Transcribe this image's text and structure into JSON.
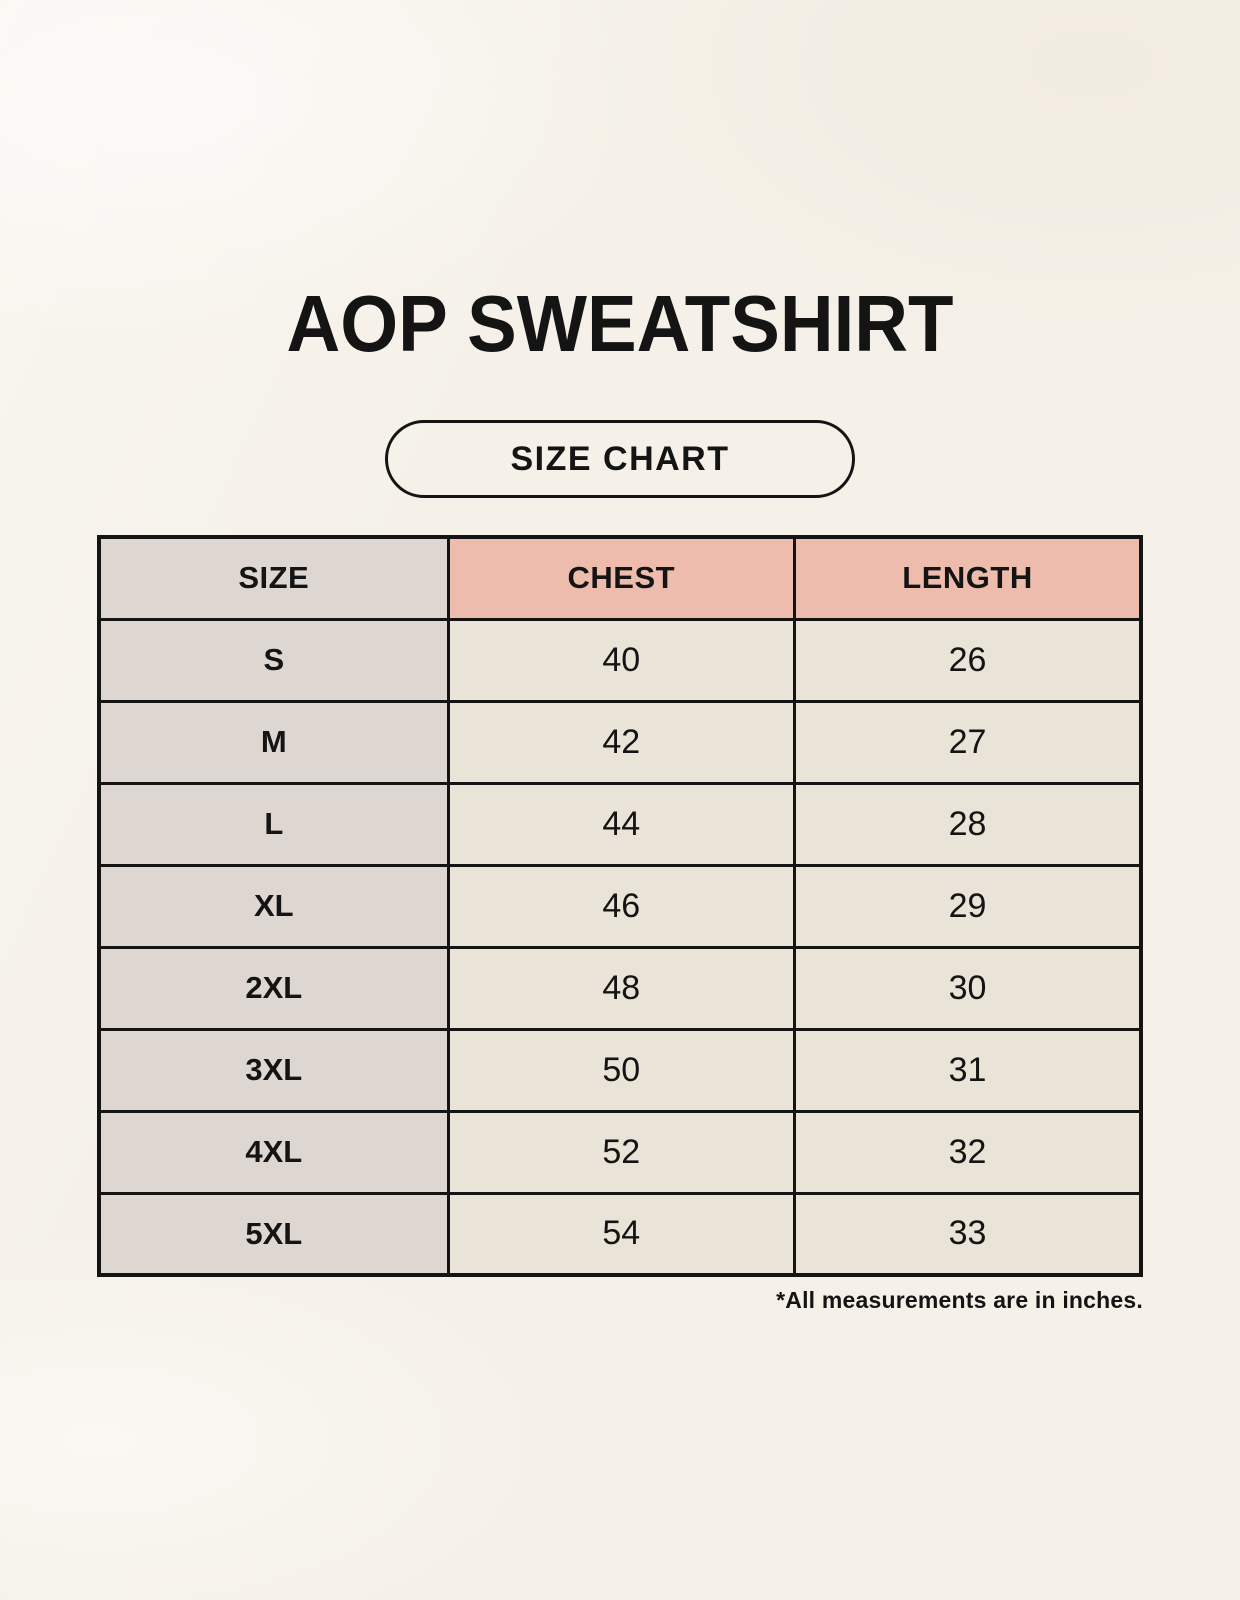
{
  "page": {
    "title": "AOP SWEATSHIRT",
    "size_chart_label": "SIZE CHART",
    "footnote": "*All measurements are in inches."
  },
  "table": {
    "columns": [
      "SIZE",
      "CHEST",
      "LENGTH"
    ],
    "rows": [
      {
        "size": "S",
        "chest": "40",
        "length": "26"
      },
      {
        "size": "M",
        "chest": "42",
        "length": "27"
      },
      {
        "size": "L",
        "chest": "44",
        "length": "28"
      },
      {
        "size": "XL",
        "chest": "46",
        "length": "29"
      },
      {
        "size": "2XL",
        "chest": "48",
        "length": "30"
      },
      {
        "size": "3XL",
        "chest": "50",
        "length": "31"
      },
      {
        "size": "4XL",
        "chest": "52",
        "length": "32"
      },
      {
        "size": "5XL",
        "chest": "54",
        "length": "33"
      }
    ]
  },
  "colors": {
    "background": "#F5F1E8",
    "accent_header": "#EEBCAD",
    "size_column": "#DED7D1",
    "value_cell": "#E9E3D8",
    "border": "#141414",
    "text": "#141414"
  },
  "chart_data": {
    "type": "table",
    "title": "AOP SWEATSHIRT",
    "subtitle": "SIZE CHART",
    "columns": [
      "SIZE",
      "CHEST",
      "LENGTH"
    ],
    "rows": [
      [
        "S",
        40,
        26
      ],
      [
        "M",
        42,
        27
      ],
      [
        "L",
        44,
        28
      ],
      [
        "XL",
        46,
        29
      ],
      [
        "2XL",
        48,
        30
      ],
      [
        "3XL",
        50,
        31
      ],
      [
        "4XL",
        52,
        32
      ],
      [
        "5XL",
        54,
        33
      ]
    ],
    "units": "inches",
    "note": "*All measurements are in inches."
  }
}
